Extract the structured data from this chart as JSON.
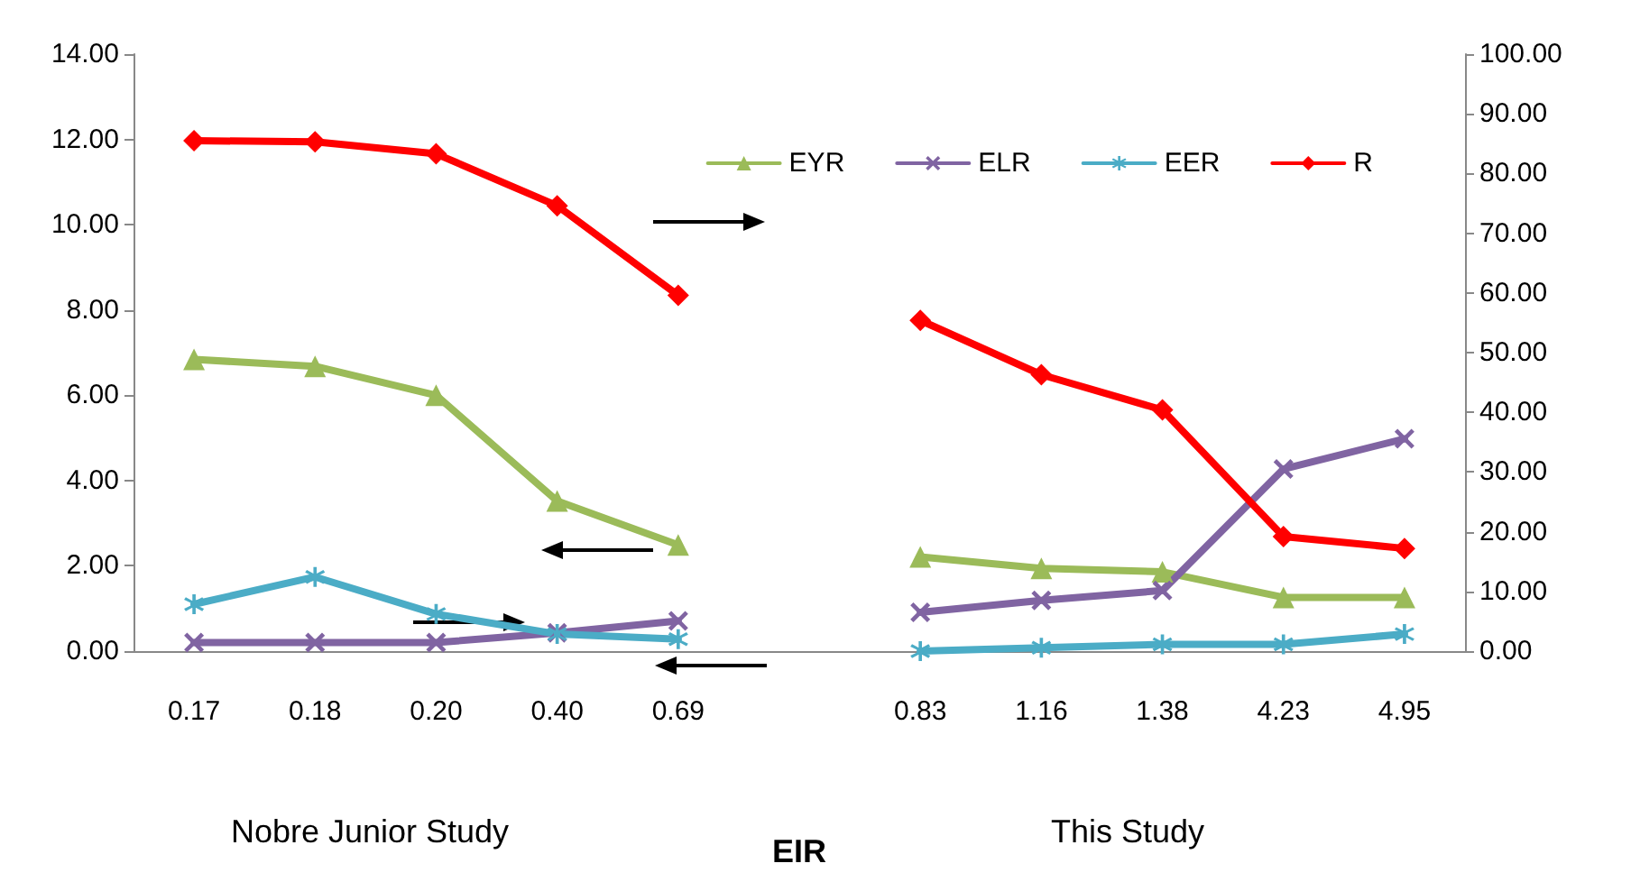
{
  "chart_data": {
    "type": "line",
    "xlabel": "EIR",
    "categories": [
      "0.17",
      "0.18",
      "0.20",
      "0.40",
      "0.69",
      null,
      "0.83",
      "1.16",
      "1.38",
      "4.23",
      "4.95"
    ],
    "series": [
      {
        "name": "EYR",
        "color": "#9bbb59",
        "marker": "triangle",
        "values": [
          6.84,
          6.68,
          6.0,
          3.52,
          2.49,
          null,
          2.21,
          1.94,
          1.86,
          1.26,
          1.26
        ]
      },
      {
        "name": "ELR",
        "color": "#8064a2",
        "marker": "cross",
        "values": [
          0.2,
          0.2,
          0.2,
          0.43,
          0.71,
          null,
          0.91,
          1.19,
          1.42,
          4.27,
          4.98
        ]
      },
      {
        "name": "EER",
        "color": "#4bacc6",
        "marker": "star",
        "values": [
          1.1,
          1.74,
          0.87,
          0.4,
          0.28,
          null,
          0.0,
          0.08,
          0.16,
          0.16,
          0.4
        ]
      },
      {
        "name": "R",
        "color": "#ff0000",
        "marker": "diamond",
        "axis": "y2",
        "values": [
          85.5,
          85.3,
          83.3,
          74.6,
          59.6,
          null,
          55.4,
          46.3,
          40.4,
          19.2,
          17.2
        ]
      }
    ],
    "ylim": [
      0,
      14
    ],
    "yticks": [
      {
        "value": 0,
        "label": "0.00"
      },
      {
        "value": 2,
        "label": "2.00"
      },
      {
        "value": 4,
        "label": "4.00"
      },
      {
        "value": 6,
        "label": "6.00"
      },
      {
        "value": 8,
        "label": "8.00"
      },
      {
        "value": 10,
        "label": "10.00"
      },
      {
        "value": 12,
        "label": "12.00"
      },
      {
        "value": 14,
        "label": "14.00"
      }
    ],
    "y2lim": [
      0,
      100
    ],
    "y2ticks": [
      {
        "value": 0,
        "label": "0.00"
      },
      {
        "value": 10,
        "label": "10.00"
      },
      {
        "value": 20,
        "label": "20.00"
      },
      {
        "value": 30,
        "label": "30.00"
      },
      {
        "value": 40,
        "label": "40.00"
      },
      {
        "value": 50,
        "label": "50.00"
      },
      {
        "value": 60,
        "label": "60.00"
      },
      {
        "value": 70,
        "label": "70.00"
      },
      {
        "value": 80,
        "label": "80.00"
      },
      {
        "value": 90,
        "label": "90.00"
      },
      {
        "value": 100,
        "label": "100.00"
      }
    ],
    "annotations": [
      "Nobre Junior Study",
      "This Study"
    ],
    "grid": false,
    "legend": "top right"
  }
}
